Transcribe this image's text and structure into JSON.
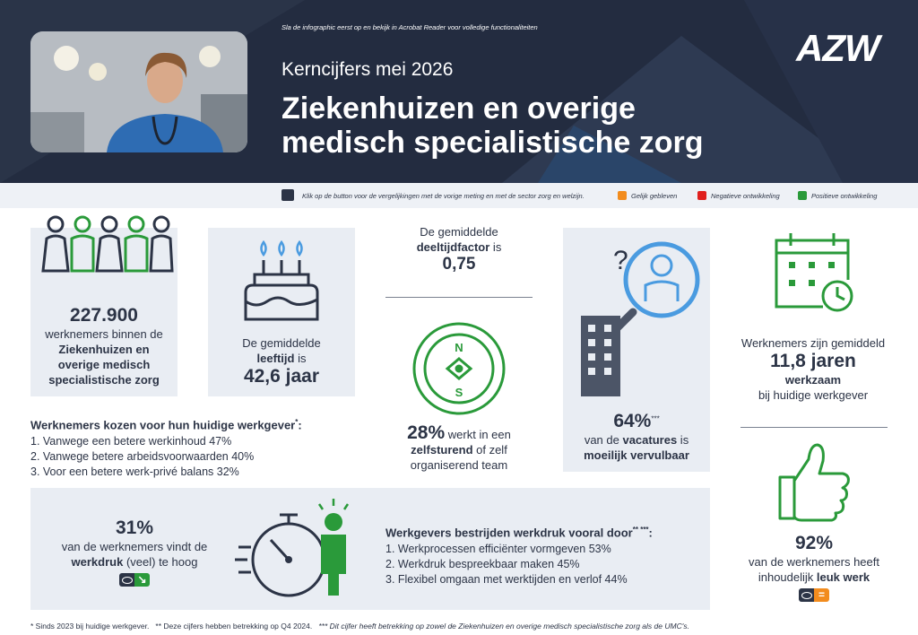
{
  "header": {
    "hint": "Sla de infographic eerst op en bekijk in Acrobat Reader voor volledige functionaliteiten",
    "kicker": "Kerncijfers mei 2026",
    "title_line1": "Ziekenhuizen en overige",
    "title_line2": "medisch specialistische zorg",
    "logo": "AZW"
  },
  "legend": {
    "instruction": "Klik op de button voor de vergelijkingen met de vorige meting en met de sector zorg en welzijn.",
    "items": [
      {
        "label": "Gelijk gebleven",
        "color": "#f28c1e"
      },
      {
        "label": "Negatieve ontwikkeling",
        "color": "#e0201e"
      },
      {
        "label": "Positieve ontwikkeling",
        "color": "#2a9a3a"
      }
    ]
  },
  "employees": {
    "value": "227.900",
    "line1": "werknemers binnen de",
    "bold1": "Ziekenhuizen en",
    "bold2": "overige medisch",
    "bold3": "specialistische zorg"
  },
  "age": {
    "pre": "De gemiddelde",
    "bold": "leeftijd",
    "post": " is",
    "value": "42,6 jaar"
  },
  "parttime": {
    "pre": "De gemiddelde",
    "bold": "deeltijdfactor",
    "post": " is",
    "value": "0,75"
  },
  "selfsteering": {
    "value": "28%",
    "post1": " werkt in een",
    "bold": "zelfsturend",
    "post2": " of zelf",
    "line3": "organiserend team"
  },
  "vacancies": {
    "value": "64%",
    "sup": "***",
    "pre": "van de ",
    "bold": "vacatures",
    "post": " is",
    "bold2": "moeilijk vervulbaar"
  },
  "tenure": {
    "line1": "Werknemers zijn gemiddeld",
    "value": "11,8 jaren",
    "bold": "werkzaam",
    "line3": "bij huidige werkgever"
  },
  "choice": {
    "title": "Werknemers kozen voor hun huidige werkgever",
    "sup": "*",
    "colon": ":",
    "items": [
      "1. Vanwege een betere werkinhoud 47%",
      "2. Vanwege betere arbeidsvoorwaarden 40%",
      "3. Voor een betere werk-privé balans 32%"
    ]
  },
  "workload": {
    "value": "31%",
    "line1": "van de werknemers vindt de",
    "bold": "werkdruk",
    "post": " (veel) te hoog",
    "status_color": "#2a9a3a",
    "status_icon": "arrow-down-right-icon"
  },
  "measures": {
    "title": "Werkgevers bestrijden werkdruk vooral door",
    "sup": "** ***",
    "colon": ":",
    "items": [
      "1. Werkprocessen efficiënter vormgeven 53%",
      "2. Werkdruk bespreekbaar maken 45%",
      "3. Flexibel omgaan met werktijden en verlof 44%"
    ]
  },
  "funwork": {
    "value": "92%",
    "line1": "van de werknemers heeft",
    "pre": "inhoudelijk ",
    "bold": "leuk werk",
    "status_color": "#f28c1e",
    "status_icon": "equals-icon"
  },
  "footer": {
    "n1": "* Sinds 2023 bij huidige werkgever.",
    "n2": "** Deze cijfers hebben betrekking op Q4 2024.",
    "n3": "*** Dit cijfer heeft betrekking op zowel de Ziekenhuizen en overige medisch specialistische zorg als de UMC's."
  },
  "colors": {
    "navy": "#232c40",
    "green": "#2a9a3a",
    "orange": "#f28c1e",
    "red": "#e0201e",
    "blue": "#4a9be0",
    "panel": "#e9edf3"
  }
}
